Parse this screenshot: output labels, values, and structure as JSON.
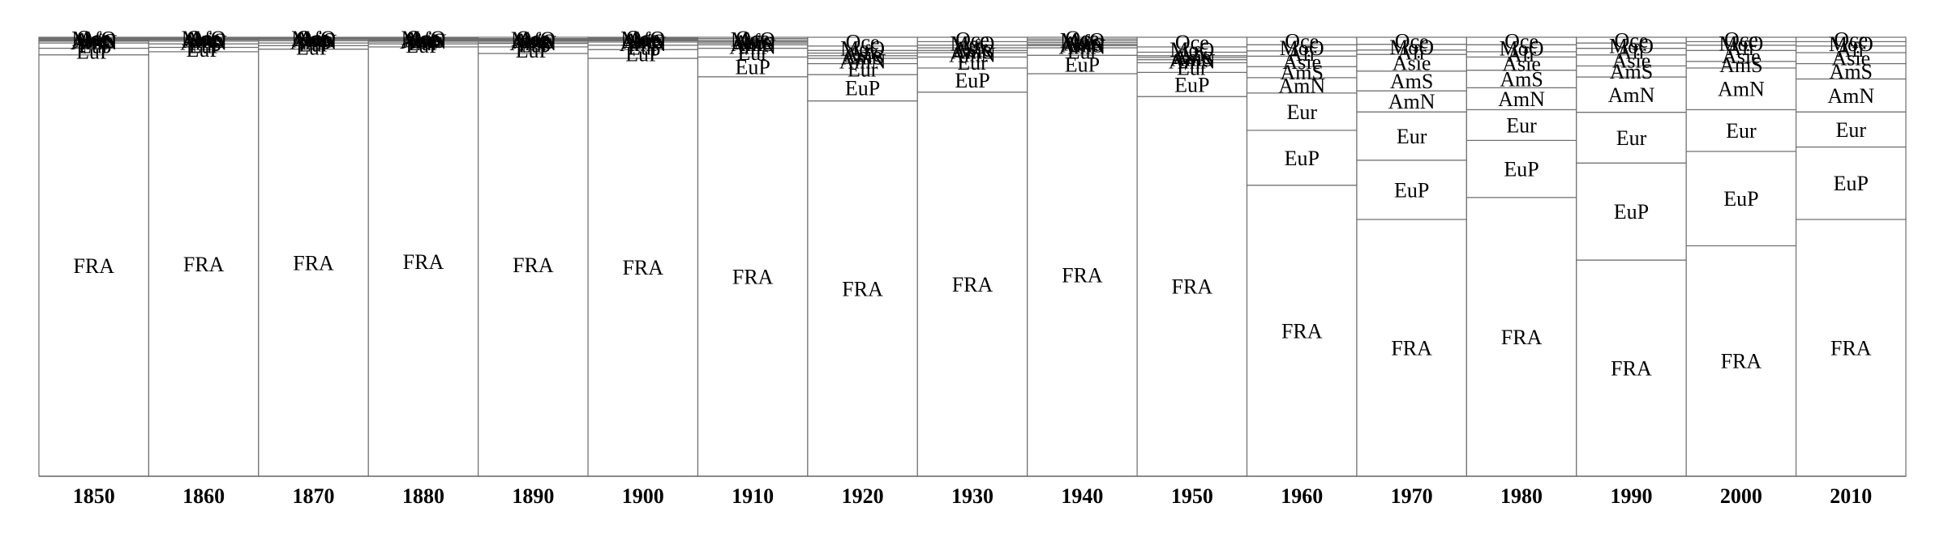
{
  "chart_data": {
    "type": "bar",
    "stacked": true,
    "normalized": true,
    "grid": false,
    "legend": "none",
    "title": "",
    "xlabel": "",
    "ylabel": "",
    "categories": [
      "1850",
      "1860",
      "1870",
      "1880",
      "1890",
      "1900",
      "1910",
      "1920",
      "1930",
      "1940",
      "1950",
      "1960",
      "1970",
      "1980",
      "1990",
      "2000",
      "2010"
    ],
    "series": [
      {
        "name": "FRA",
        "values": [
          96.0,
          96.7,
          97.3,
          97.8,
          96.5,
          95.2,
          91.0,
          85.5,
          87.5,
          91.7,
          86.5,
          66.3,
          58.5,
          63.5,
          49.0,
          52.5,
          58.5
        ]
      },
      {
        "name": "EuP",
        "values": [
          1.5,
          1.0,
          0.8,
          0.7,
          1.5,
          2.0,
          4.5,
          6.0,
          5.5,
          4.2,
          5.5,
          12.5,
          13.5,
          13.0,
          22.0,
          21.5,
          16.5
        ]
      },
      {
        "name": "Eur",
        "values": [
          1.2,
          0.8,
          0.6,
          0.4,
          0.8,
          1.0,
          2.0,
          2.5,
          2.5,
          1.7,
          2.2,
          8.5,
          11.0,
          7.0,
          11.5,
          9.5,
          8.0
        ]
      },
      {
        "name": "AmN",
        "values": [
          0.4,
          0.6,
          0.5,
          0.3,
          0.3,
          0.7,
          0.8,
          1.2,
          1.0,
          0.5,
          0.7,
          3.5,
          4.8,
          5.0,
          8.0,
          9.5,
          7.5
        ]
      },
      {
        "name": "AmS",
        "values": [
          0.2,
          0.3,
          0.3,
          0.2,
          0.3,
          0.3,
          0.4,
          0.6,
          0.5,
          0.3,
          0.5,
          2.5,
          4.5,
          4.0,
          2.5,
          1.5,
          3.5
        ]
      },
      {
        "name": "Asie",
        "values": [
          0.2,
          0.2,
          0.2,
          0.2,
          0.2,
          0.2,
          0.3,
          0.6,
          0.6,
          0.4,
          0.4,
          2.4,
          3.8,
          3.0,
          2.5,
          2.5,
          2.5
        ]
      },
      {
        "name": "Afr",
        "values": [
          0.2,
          0.2,
          0.1,
          0.1,
          0.1,
          0.2,
          0.3,
          0.6,
          0.6,
          0.4,
          0.8,
          1.2,
          1.0,
          1.2,
          1.5,
          1.2,
          1.5
        ]
      },
      {
        "name": "MoO",
        "values": [
          0.1,
          0.1,
          0.1,
          0.2,
          0.2,
          0.2,
          0.4,
          1.0,
          0.8,
          0.4,
          1.2,
          1.4,
          1.3,
          1.6,
          1.2,
          0.8,
          1.0
        ]
      },
      {
        "name": "Oce",
        "values": [
          0.2,
          0.1,
          0.1,
          0.1,
          0.3,
          0.2,
          0.3,
          2.0,
          1.0,
          0.4,
          2.2,
          1.7,
          1.6,
          1.7,
          1.3,
          1.0,
          1.0
        ]
      }
    ],
    "ylim": [
      0,
      100
    ]
  }
}
